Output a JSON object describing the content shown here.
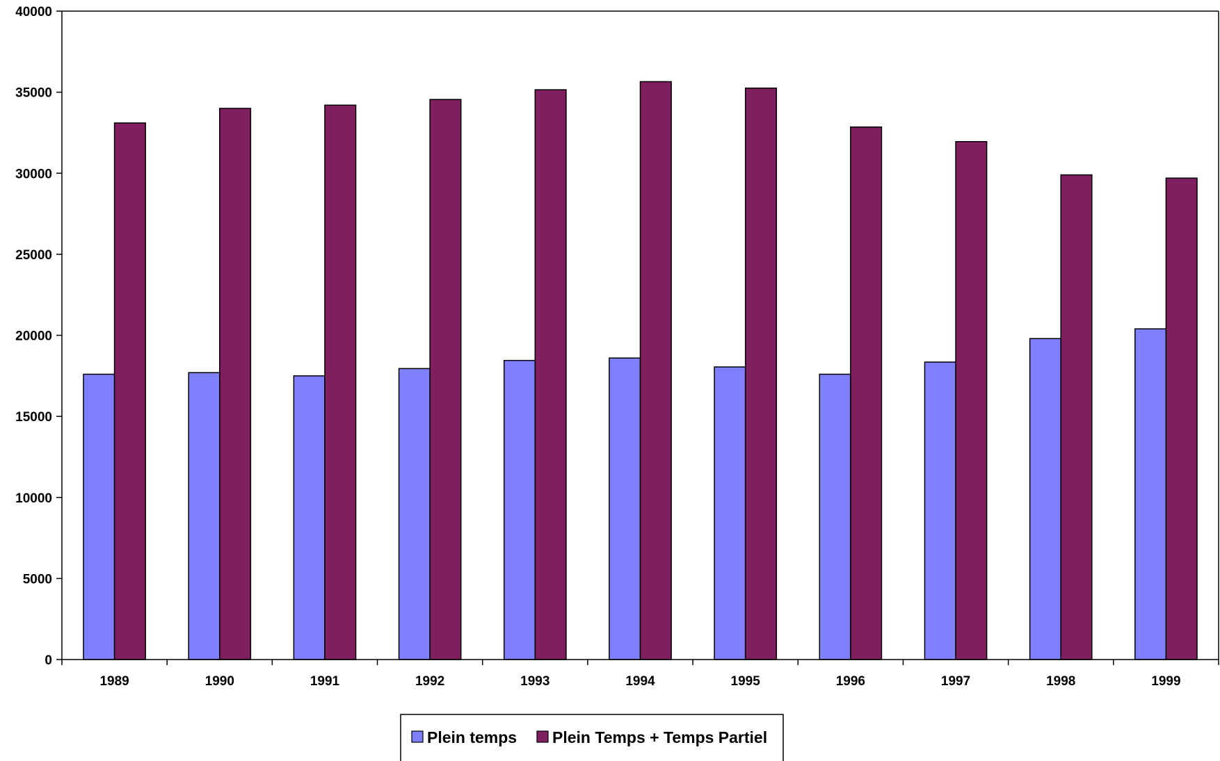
{
  "chart_data": {
    "type": "bar",
    "title": "",
    "xlabel": "",
    "ylabel": "",
    "categories": [
      "1989",
      "1990",
      "1991",
      "1992",
      "1993",
      "1994",
      "1995",
      "1996",
      "1997",
      "1998",
      "1999"
    ],
    "series": [
      {
        "name": "Plein temps",
        "color": "#8080ff",
        "values": [
          17600,
          17700,
          17500,
          17950,
          18450,
          18600,
          18050,
          17600,
          18350,
          19800,
          20400
        ]
      },
      {
        "name": "Plein Temps + Temps Partiel",
        "color": "#801f5f",
        "values": [
          33100,
          34000,
          34200,
          34550,
          35150,
          35650,
          35250,
          32850,
          31950,
          29900,
          29700
        ]
      }
    ],
    "ylim": [
      0,
      40000
    ],
    "yticks": [
      0,
      5000,
      10000,
      15000,
      20000,
      25000,
      30000,
      35000,
      40000
    ],
    "ytick_labels": [
      "0",
      "5000",
      "10000",
      "15000",
      "20000",
      "25000",
      "30000",
      "35000",
      "40000"
    ],
    "grid": false,
    "legend_position": "bottom-center"
  }
}
